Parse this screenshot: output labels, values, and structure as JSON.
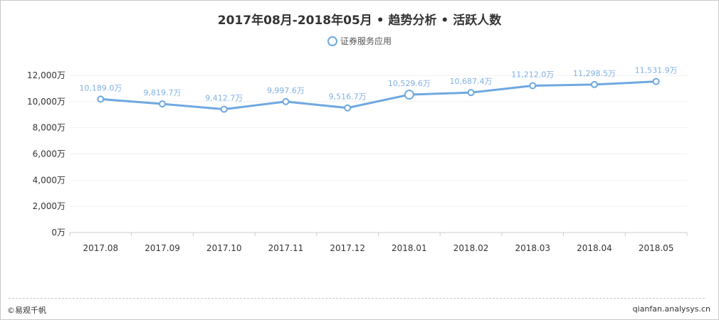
{
  "chart": {
    "title": "2017年08月-2018年05月 • 趋势分析 • 活跃人数",
    "legend_label": "证券服务应用",
    "footer_left": "©易观千帆",
    "footer_right": "qianfan.analysys.cn",
    "colors": {
      "line": "#6fa8e0",
      "label": "#7fb0e3",
      "grid": "#f0f0f0",
      "axis": "#cccccc",
      "text": "#333333"
    }
  },
  "chart_data": {
    "type": "line",
    "title": "2017年08月-2018年05月 • 趋势分析 • 活跃人数",
    "xlabel": "",
    "ylabel": "",
    "unit": "万",
    "categories": [
      "2017.08",
      "2017.09",
      "2017.10",
      "2017.11",
      "2017.12",
      "2018.01",
      "2018.02",
      "2018.03",
      "2018.04",
      "2018.05"
    ],
    "series": [
      {
        "name": "证券服务应用",
        "values": [
          10189.0,
          9819.7,
          9412.7,
          9997.6,
          9516.7,
          10529.6,
          10687.4,
          11212.0,
          11298.5,
          11531.9
        ],
        "labels": [
          "10,189.0万",
          "9,819.7万",
          "9,412.7万",
          "9,997.6万",
          "9,516.7万",
          "10,529.6万",
          "10,687.4万",
          "11,212.0万",
          "11,298.5万",
          "11,531.9万"
        ]
      }
    ],
    "yticks": [
      0,
      2000,
      4000,
      6000,
      8000,
      10000,
      12000
    ],
    "ytick_labels": [
      "0万",
      "2,000万",
      "4,000万",
      "6,000万",
      "8,000万",
      "10,000万",
      "12,000万"
    ],
    "ylim": [
      0,
      12000
    ],
    "grid": true,
    "legend_position": "top",
    "highlighted_index": 5
  }
}
